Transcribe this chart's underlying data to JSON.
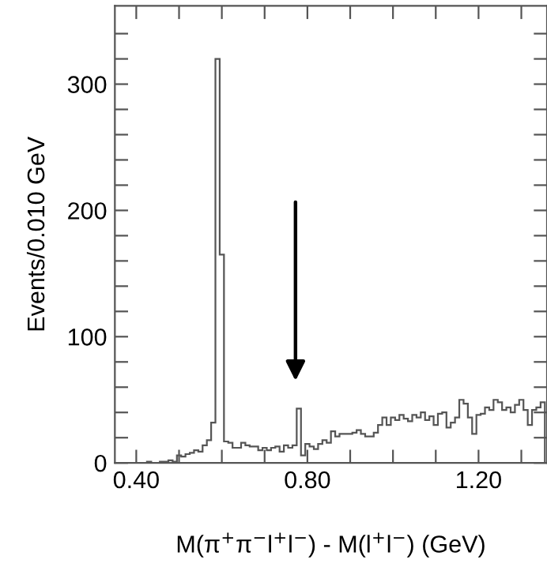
{
  "chart_data": {
    "type": "histogram",
    "xlabel": "M(π$^{+}$π$^{−}$l$^{+}$l$^{−}$) - M(l$^{+}$l$^{−}$) (GeV)",
    "ylabel": "Events/0.010 GeV",
    "bins": [
      0.355,
      0.365,
      0.375,
      0.385,
      0.395,
      0.405,
      0.415,
      0.425,
      0.435,
      0.445,
      0.455,
      0.465,
      0.475,
      0.485,
      0.495,
      0.505,
      0.515,
      0.525,
      0.535,
      0.545,
      0.555,
      0.565,
      0.575,
      0.585,
      0.595,
      0.605,
      0.615,
      0.625,
      0.635,
      0.645,
      0.655,
      0.665,
      0.675,
      0.685,
      0.695,
      0.705,
      0.715,
      0.725,
      0.735,
      0.745,
      0.755,
      0.765,
      0.775,
      0.785,
      0.795,
      0.805,
      0.815,
      0.825,
      0.835,
      0.845,
      0.855,
      0.865,
      0.875,
      0.885,
      0.895,
      0.905,
      0.915,
      0.925,
      0.935,
      0.945,
      0.955,
      0.965,
      0.975,
      0.985,
      0.995,
      1.005,
      1.015,
      1.025,
      1.035,
      1.045,
      1.055,
      1.065,
      1.075,
      1.085,
      1.095,
      1.105,
      1.115,
      1.125,
      1.135,
      1.145,
      1.155,
      1.165,
      1.175,
      1.185,
      1.195,
      1.205,
      1.215,
      1.225,
      1.235,
      1.245,
      1.255,
      1.265,
      1.275,
      1.285,
      1.295,
      1.305,
      1.315,
      1.325,
      1.335,
      1.345,
      1.355
    ],
    "values": [
      0,
      0,
      0,
      0,
      0,
      0,
      0,
      1,
      0,
      0,
      1,
      1,
      2,
      1,
      6,
      5,
      7,
      8,
      10,
      9,
      14,
      18,
      32,
      320,
      165,
      17,
      16,
      12,
      12,
      16,
      14,
      13,
      13,
      10,
      12,
      10,
      12,
      13,
      9,
      14,
      12,
      14,
      43,
      6,
      15,
      13,
      11,
      15,
      18,
      16,
      25,
      21,
      23,
      23,
      23,
      24,
      26,
      23,
      21,
      21,
      24,
      30,
      36,
      30,
      36,
      34,
      38,
      35,
      33,
      38,
      36,
      40,
      34,
      37,
      30,
      39,
      40,
      28,
      32,
      36,
      50,
      47,
      36,
      23,
      38,
      39,
      44,
      42,
      50,
      48,
      42,
      44,
      40,
      46,
      50,
      42,
      30,
      42,
      44,
      48
    ],
    "color": "#555555",
    "xlim": [
      0.35,
      1.36
    ],
    "ylim": [
      0,
      362
    ],
    "xticks": [
      {
        "value": 0.4,
        "label": "0.40"
      },
      {
        "value": 0.5,
        "label": null
      },
      {
        "value": 0.6,
        "label": null
      },
      {
        "value": 0.7,
        "label": null
      },
      {
        "value": 0.8,
        "label": "0.80"
      },
      {
        "value": 0.9,
        "label": null
      },
      {
        "value": 1.0,
        "label": null
      },
      {
        "value": 1.1,
        "label": null
      },
      {
        "value": 1.2,
        "label": "1.20"
      },
      {
        "value": 1.3,
        "label": null
      }
    ],
    "yticks": [
      0,
      {
        "value": 20,
        "label": null
      },
      {
        "value": 40,
        "label": null
      },
      {
        "value": 60,
        "label": null
      },
      {
        "value": 80,
        "label": null
      },
      100,
      {
        "value": 120,
        "label": null
      },
      {
        "value": 140,
        "label": null
      },
      {
        "value": 160,
        "label": null
      },
      {
        "value": 180,
        "label": null
      },
      200,
      {
        "value": 220,
        "label": null
      },
      {
        "value": 240,
        "label": null
      },
      {
        "value": 260,
        "label": null
      },
      {
        "value": 280,
        "label": null
      },
      300,
      {
        "value": 320,
        "label": null
      },
      {
        "value": 340,
        "label": null
      }
    ],
    "grid": false
  }
}
